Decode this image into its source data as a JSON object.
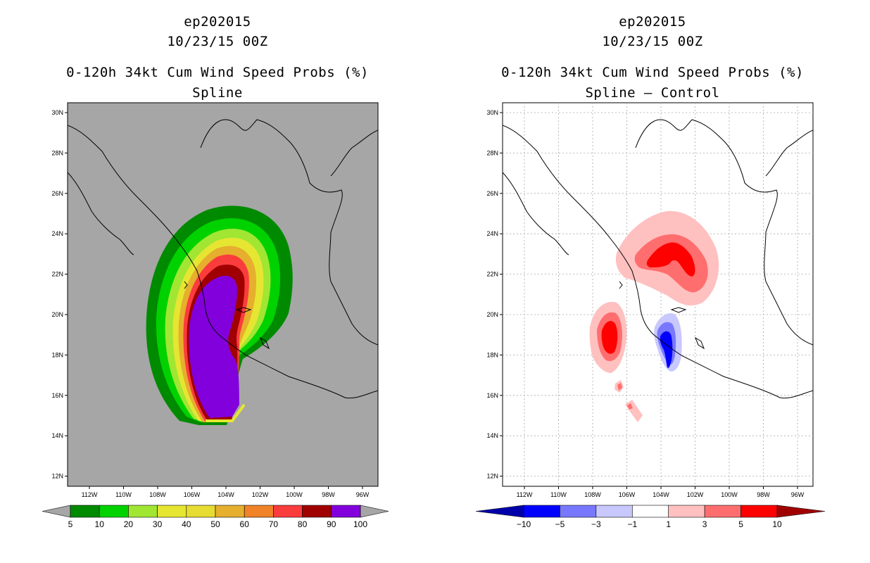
{
  "panels": [
    {
      "storm_id": "ep202015",
      "datetime": "10/23/15 00Z",
      "product": "0-120h 34kt Cum Wind Speed Probs (%)",
      "subtitle": "Spline",
      "colors": [
        "#a6a6a6",
        "#008a00",
        "#00d200",
        "#a1e632",
        "#e6e632",
        "#e6dc32",
        "#e6af2d",
        "#f08228",
        "#fa3c3c",
        "#a00000",
        "#8200dc",
        "#a6a6a6"
      ],
      "colorbar_labels": [
        "5",
        "10",
        "20",
        "30",
        "40",
        "50",
        "60",
        "70",
        "80",
        "90",
        "100"
      ]
    },
    {
      "storm_id": "ep202015",
      "datetime": "10/23/15 00Z",
      "product": "0-120h 34kt Cum Wind Speed Probs (%)",
      "subtitle": "Spline – Control",
      "colors": [
        "#0000aa",
        "#0000ff",
        "#7878ff",
        "#c8c8ff",
        "#ffffff",
        "#ffc0c0",
        "#ff6e6e",
        "#ff0000",
        "#a00000"
      ],
      "colorbar_labels": [
        "−10",
        "−5",
        "−3",
        "−1",
        "1",
        "3",
        "5",
        "10"
      ]
    }
  ],
  "map": {
    "lat_labels": [
      "30N",
      "28N",
      "26N",
      "24N",
      "22N",
      "20N",
      "18N",
      "16N",
      "14N",
      "12N"
    ],
    "lon_labels": [
      "112W",
      "110W",
      "108W",
      "106W",
      "104W",
      "102W",
      "100W",
      "98W",
      "96W"
    ],
    "land_background_left": "#a6a6a6",
    "coastline_color": "#000000",
    "grid_color": "#aaaaaa"
  }
}
